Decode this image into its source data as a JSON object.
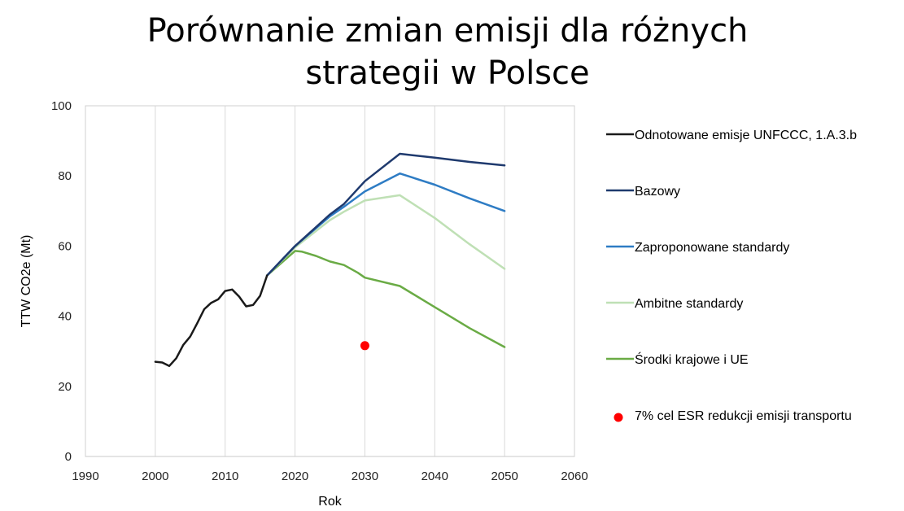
{
  "chart_data": {
    "type": "line",
    "title_lines": [
      "Porównanie zmian emisji dla różnych",
      "strategii w Polsce"
    ],
    "xlabel": "Rok",
    "ylabel": "TTW CO2e (Mt)",
    "xlim": [
      1990,
      2060
    ],
    "ylim": [
      0,
      100
    ],
    "xticks": [
      1990,
      2000,
      2010,
      2020,
      2030,
      2040,
      2050,
      2060
    ],
    "yticks": [
      0,
      20,
      40,
      60,
      80,
      100
    ],
    "grid": "vertical",
    "legend_position": "right",
    "series": [
      {
        "name": "Odnotowane emisje UNFCCC, 1.A.3.b",
        "color": "#1a1a1a",
        "kind": "line",
        "points": [
          [
            2000,
            27
          ],
          [
            2001,
            26.8
          ],
          [
            2002,
            25.8
          ],
          [
            2003,
            28
          ],
          [
            2004,
            31.8
          ],
          [
            2005,
            34.2
          ],
          [
            2006,
            38
          ],
          [
            2007,
            42
          ],
          [
            2008,
            43.8
          ],
          [
            2009,
            44.8
          ],
          [
            2010,
            47.2
          ],
          [
            2011,
            47.6
          ],
          [
            2012,
            45.6
          ],
          [
            2013,
            42.8
          ],
          [
            2014,
            43.2
          ],
          [
            2015,
            45.8
          ],
          [
            2016,
            51.6
          ]
        ]
      },
      {
        "name": "Bazowy",
        "color": "#1f3a6e",
        "kind": "line",
        "points": [
          [
            2016,
            51.6
          ],
          [
            2020,
            60
          ],
          [
            2025,
            69
          ],
          [
            2027,
            72
          ],
          [
            2030,
            78.5
          ],
          [
            2035,
            86.3
          ],
          [
            2040,
            85.2
          ],
          [
            2045,
            84
          ],
          [
            2050,
            83
          ]
        ]
      },
      {
        "name": "Zaproponowane standardy",
        "color": "#2e7cc4",
        "kind": "line",
        "points": [
          [
            2016,
            51.6
          ],
          [
            2020,
            60
          ],
          [
            2025,
            68.5
          ],
          [
            2027,
            71.2
          ],
          [
            2030,
            75.6
          ],
          [
            2035,
            80.7
          ],
          [
            2040,
            77.5
          ],
          [
            2045,
            73.6
          ],
          [
            2050,
            70
          ]
        ]
      },
      {
        "name": "Ambitne standardy",
        "color": "#bfe0b5",
        "kind": "line",
        "points": [
          [
            2016,
            51.6
          ],
          [
            2020,
            59.6
          ],
          [
            2025,
            67.4
          ],
          [
            2027,
            69.8
          ],
          [
            2030,
            73
          ],
          [
            2035,
            74.5
          ],
          [
            2040,
            68
          ],
          [
            2045,
            60.5
          ],
          [
            2050,
            53.5
          ]
        ]
      },
      {
        "name": "Środki krajowe i UE",
        "color": "#6aab45",
        "kind": "line",
        "points": [
          [
            2016,
            51.6
          ],
          [
            2020,
            58.6
          ],
          [
            2021,
            58.4
          ],
          [
            2023,
            57.2
          ],
          [
            2025,
            55.6
          ],
          [
            2027,
            54.6
          ],
          [
            2029,
            52.4
          ],
          [
            2030,
            51
          ],
          [
            2035,
            48.6
          ],
          [
            2040,
            42.6
          ],
          [
            2045,
            36.6
          ],
          [
            2050,
            31.2
          ]
        ]
      },
      {
        "name": "7% cel ESR redukcji emisji transportu",
        "color": "#ff0000",
        "kind": "point",
        "points": [
          [
            2030,
            31.6
          ]
        ]
      }
    ]
  }
}
